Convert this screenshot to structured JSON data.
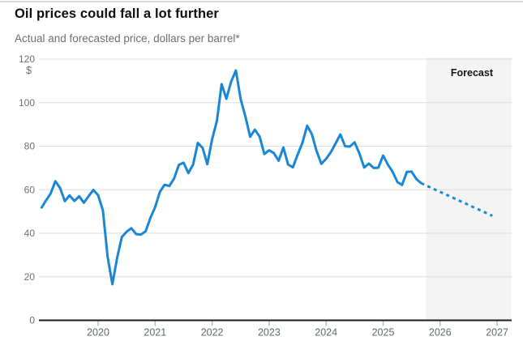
{
  "header": {
    "title": "Oil prices could fall a lot further",
    "subtitle": "Actual and forecasted price, dollars per barrel*"
  },
  "chart_data": {
    "type": "line",
    "title": "Oil prices could fall a lot further",
    "subtitle": "Actual and forecasted price, dollars per barrel*",
    "unit_label": "$",
    "xlabel": "",
    "ylabel": "dollars per barrel",
    "ylim": [
      0,
      120
    ],
    "y_ticks": [
      0,
      20,
      40,
      60,
      80,
      100,
      120
    ],
    "x_ticks": [
      2020,
      2021,
      2022,
      2023,
      2024,
      2025,
      2026,
      2027
    ],
    "x_range_years": [
      2019.0,
      2027.25
    ],
    "grid": "horizontal",
    "legend_position": "none",
    "line_color": "#1a86d6",
    "gridline_color": "#dddddd",
    "axis_color": "#1b1b1b",
    "tick_color": "#b9b9b9",
    "forecast_region": {
      "label": "Forecast",
      "start_year": 2025.75,
      "end_year": 2027.25,
      "fill": "#f4f4f4"
    },
    "series": [
      {
        "name": "Actual price",
        "style": "solid",
        "start_year": 2019,
        "start_month": 1,
        "values": [
          51.4,
          55.0,
          58.2,
          63.9,
          60.8,
          54.7,
          57.4,
          54.8,
          57.0,
          54.0,
          57.0,
          59.9,
          57.5,
          50.5,
          29.2,
          16.6,
          28.6,
          38.3,
          40.7,
          42.3,
          39.6,
          39.4,
          40.9,
          47.0,
          52.0,
          59.0,
          62.3,
          61.7,
          65.2,
          71.4,
          72.4,
          67.7,
          71.6,
          81.5,
          79.2,
          71.7,
          83.2,
          91.6,
          108.5,
          101.8,
          109.6,
          114.8,
          101.6,
          93.7,
          84.3,
          87.6,
          84.4,
          76.4,
          78.1,
          76.8,
          73.3,
          79.4,
          71.6,
          70.3,
          76.1,
          81.4,
          89.4,
          85.5,
          77.7,
          71.9,
          74.2,
          77.3,
          81.3,
          85.4,
          80.0,
          79.8,
          81.8,
          76.7,
          70.2,
          72.0,
          70.0,
          70.1,
          75.7,
          71.5,
          68.2,
          63.5,
          62.2,
          68.2,
          68.3,
          64.9,
          63.0
        ]
      },
      {
        "name": "Forecasted price",
        "style": "dotted",
        "start_year": 2025,
        "start_month": 9,
        "values": [
          63.0,
          62.0,
          61.0,
          60.0,
          59.0,
          58.0,
          57.0,
          56.0,
          55.0,
          54.0,
          53.0,
          52.0,
          51.0,
          50.0,
          49.0,
          48.0
        ]
      }
    ]
  }
}
